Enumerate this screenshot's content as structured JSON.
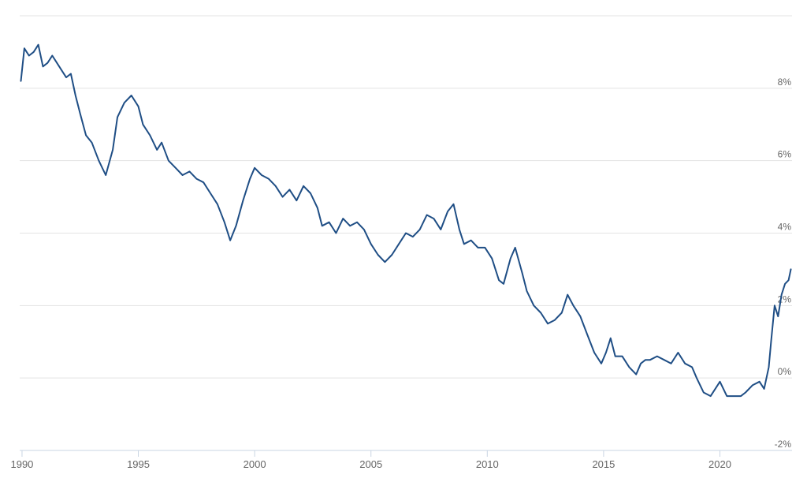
{
  "chart_data": {
    "type": "line",
    "title": "",
    "xlabel": "",
    "ylabel": "",
    "xlim": [
      1989.9,
      2023.1
    ],
    "ylim": [
      -2,
      10
    ],
    "y_ticks": [
      -2,
      0,
      2,
      4,
      6,
      8
    ],
    "y_tick_labels": [
      "-2%",
      "0%",
      "2%",
      "4%",
      "6%",
      "8%"
    ],
    "x_ticks": [
      1990,
      1995,
      2000,
      2005,
      2010,
      2015,
      2020
    ],
    "x_tick_labels": [
      "1990",
      "1995",
      "2000",
      "2005",
      "2010",
      "2015",
      "2020"
    ],
    "grid": "horizontal",
    "y_axis_side": "right",
    "legend": "none",
    "line_color": "#1f4e85",
    "series": [
      {
        "x": [
          1989.95,
          1990.1,
          1990.3,
          1990.5,
          1990.7,
          1990.9,
          1991.1,
          1991.3,
          1991.5,
          1991.7,
          1991.9,
          1992.1,
          1992.3,
          1992.5,
          1992.75,
          1993.0,
          1993.3,
          1993.6,
          1993.9,
          1994.1,
          1994.4,
          1994.7,
          1995.0,
          1995.2,
          1995.5,
          1995.8,
          1996.0,
          1996.3,
          1996.6,
          1996.9,
          1997.2,
          1997.5,
          1997.8,
          1998.1,
          1998.4,
          1998.7,
          1998.95,
          1999.2,
          1999.5,
          1999.8,
          2000.0,
          2000.3,
          2000.6,
          2000.9,
          2001.2,
          2001.5,
          2001.8,
          2002.1,
          2002.4,
          2002.7,
          2002.9,
          2003.2,
          2003.5,
          2003.8,
          2004.1,
          2004.4,
          2004.7,
          2005.0,
          2005.3,
          2005.6,
          2005.9,
          2006.2,
          2006.5,
          2006.8,
          2007.1,
          2007.4,
          2007.7,
          2008.0,
          2008.3,
          2008.55,
          2008.8,
          2009.0,
          2009.3,
          2009.6,
          2009.9,
          2010.2,
          2010.5,
          2010.7,
          2011.0,
          2011.2,
          2011.5,
          2011.7,
          2012.0,
          2012.3,
          2012.6,
          2012.9,
          2013.2,
          2013.45,
          2013.7,
          2014.0,
          2014.3,
          2014.6,
          2014.9,
          2015.1,
          2015.3,
          2015.5,
          2015.8,
          2016.1,
          2016.4,
          2016.6,
          2016.8,
          2017.0,
          2017.3,
          2017.6,
          2017.9,
          2018.2,
          2018.5,
          2018.8,
          2019.0,
          2019.3,
          2019.6,
          2019.8,
          2020.0,
          2020.3,
          2020.6,
          2020.9,
          2021.1,
          2021.4,
          2021.7,
          2021.9,
          2022.1,
          2022.2,
          2022.35,
          2022.5,
          2022.65,
          2022.8,
          2022.95,
          2023.05
        ],
        "y": [
          8.2,
          9.1,
          8.9,
          9.0,
          9.2,
          8.6,
          8.7,
          8.9,
          8.7,
          8.5,
          8.3,
          8.4,
          7.8,
          7.3,
          6.7,
          6.5,
          6.0,
          5.6,
          6.3,
          7.2,
          7.6,
          7.8,
          7.5,
          7.0,
          6.7,
          6.3,
          6.5,
          6.0,
          5.8,
          5.6,
          5.7,
          5.5,
          5.4,
          5.1,
          4.8,
          4.3,
          3.8,
          4.2,
          4.9,
          5.5,
          5.8,
          5.6,
          5.5,
          5.3,
          5.0,
          5.2,
          4.9,
          5.3,
          5.1,
          4.7,
          4.2,
          4.3,
          4.0,
          4.4,
          4.2,
          4.3,
          4.1,
          3.7,
          3.4,
          3.2,
          3.4,
          3.7,
          4.0,
          3.9,
          4.1,
          4.5,
          4.4,
          4.1,
          4.6,
          4.8,
          4.1,
          3.7,
          3.8,
          3.6,
          3.6,
          3.3,
          2.7,
          2.6,
          3.3,
          3.6,
          2.9,
          2.4,
          2.0,
          1.8,
          1.5,
          1.6,
          1.8,
          2.3,
          2.0,
          1.7,
          1.2,
          0.7,
          0.4,
          0.7,
          1.1,
          0.6,
          0.6,
          0.3,
          0.1,
          0.4,
          0.5,
          0.5,
          0.6,
          0.5,
          0.4,
          0.7,
          0.4,
          0.3,
          0.0,
          -0.4,
          -0.5,
          -0.3,
          -0.1,
          -0.5,
          -0.5,
          -0.5,
          -0.4,
          -0.2,
          -0.1,
          -0.3,
          0.3,
          1.0,
          2.0,
          1.7,
          2.3,
          2.6,
          2.7,
          3.0
        ]
      }
    ]
  }
}
